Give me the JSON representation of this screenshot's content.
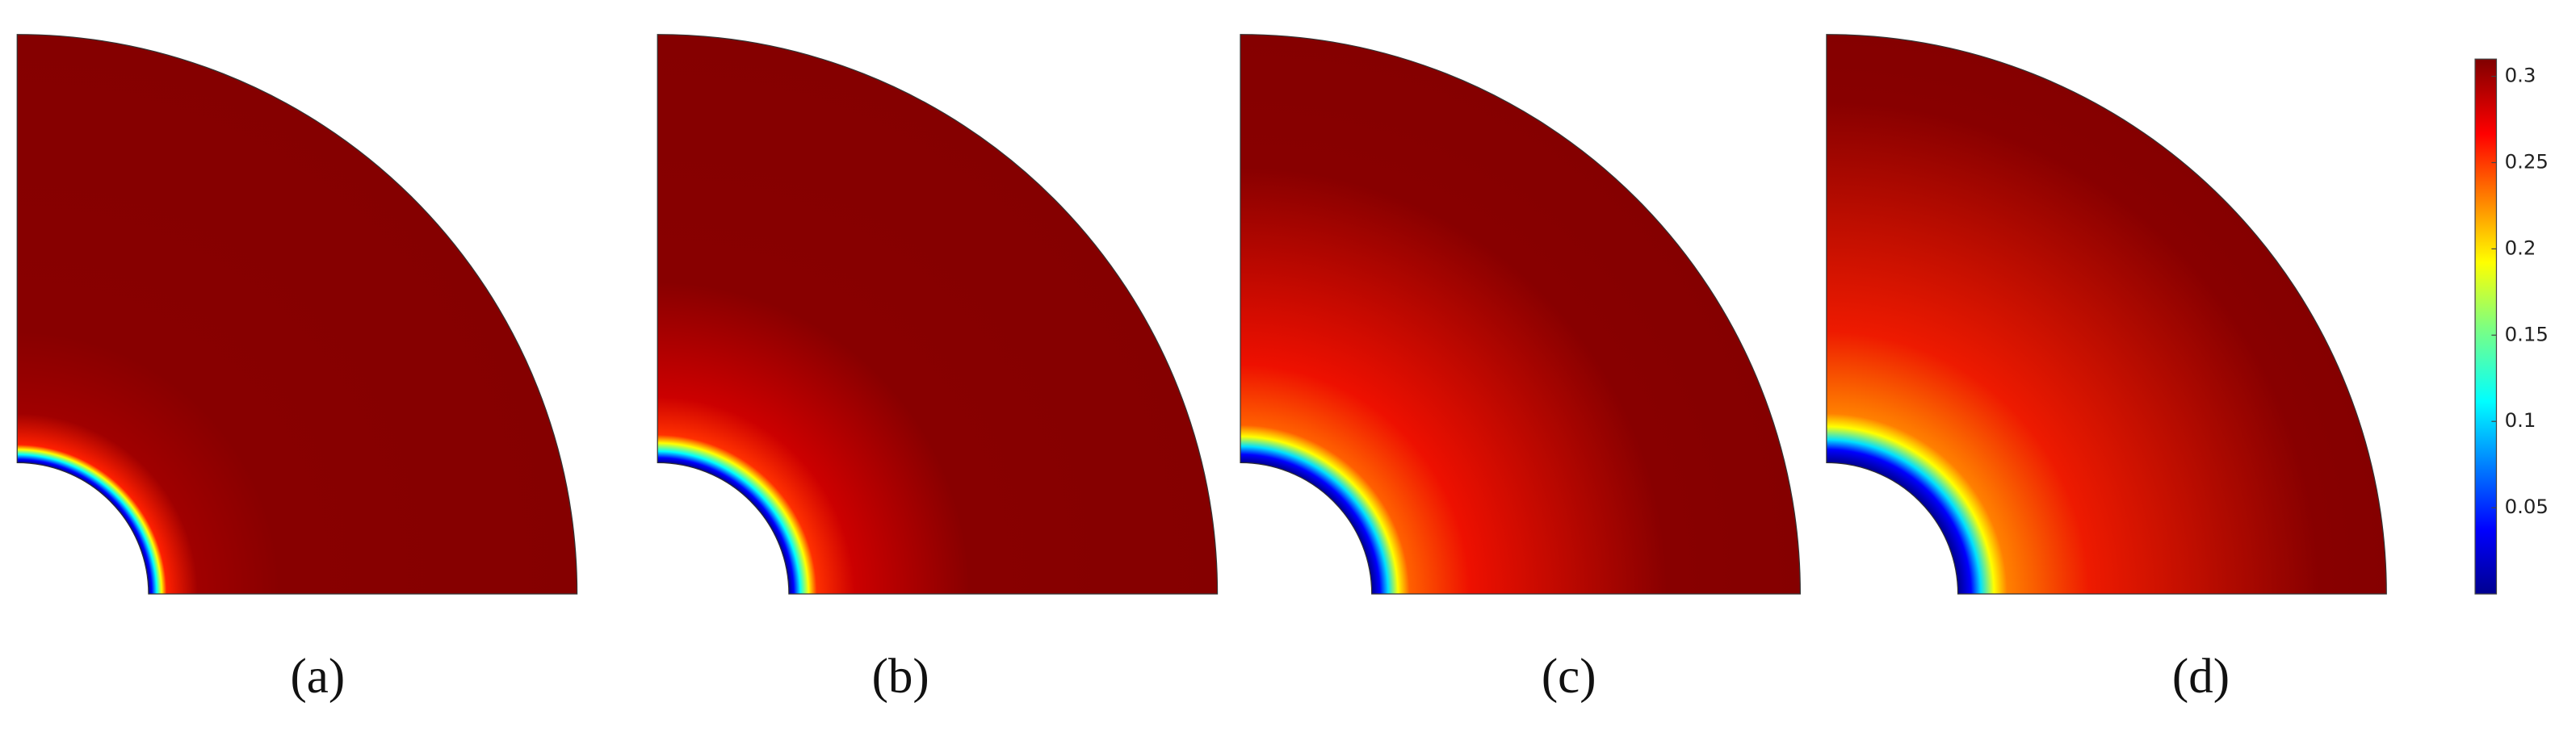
{
  "panels": [
    {
      "label": "(a)"
    },
    {
      "label": "(b)"
    },
    {
      "label": "(c)"
    },
    {
      "label": "(d)"
    }
  ],
  "colorbar": {
    "lim": [
      0,
      0.31
    ],
    "ticks": [
      0.05,
      0.1,
      0.15,
      0.2,
      0.25,
      0.3
    ]
  }
}
